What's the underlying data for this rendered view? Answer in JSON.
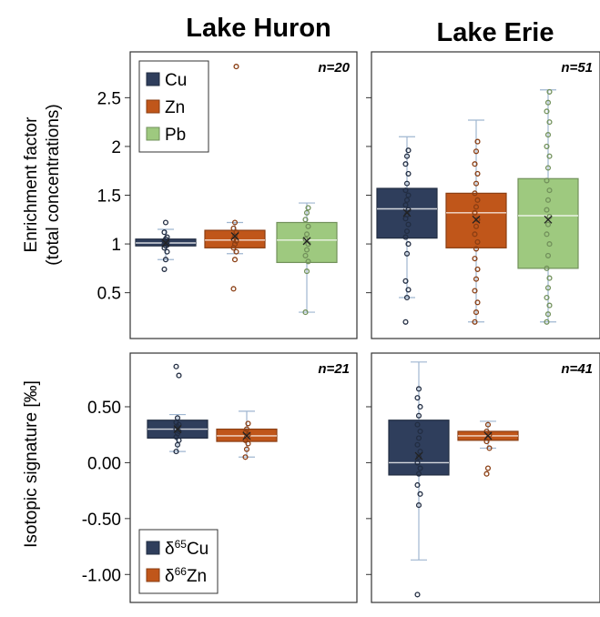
{
  "titles": {
    "left": "Lake Huron",
    "right": "Lake Erie"
  },
  "colors": {
    "Cu": "#2f3e5c",
    "Zn": "#c0561a",
    "Pb": "#9ec97f"
  },
  "chart_data": [
    {
      "type": "box",
      "panel": "top",
      "ylabel_line1": "Enrichment factor",
      "ylabel_line2": "(total concentrations)",
      "yticks": [
        "0.5",
        "1",
        "1.5",
        "2",
        "2.5"
      ],
      "ylim": [
        0.03,
        2.97
      ],
      "legend": {
        "placement": "top-left",
        "entries": [
          "Cu",
          "Zn",
          "Pb"
        ]
      },
      "groups": [
        {
          "lake": "Lake Huron",
          "n_label": "n=20",
          "series": [
            {
              "name": "Cu",
              "min": 0.84,
              "q1": 0.98,
              "median": 1.01,
              "q3": 1.05,
              "max": 1.15,
              "mean": 1.01,
              "points": [
                0.74,
                0.84,
                0.92,
                0.96,
                0.98,
                0.99,
                1.0,
                1.01,
                1.02,
                1.03,
                1.05,
                1.07,
                1.12,
                1.22
              ]
            },
            {
              "name": "Zn",
              "min": 0.9,
              "q1": 0.96,
              "median": 1.04,
              "q3": 1.14,
              "max": 1.22,
              "mean": 1.08,
              "points": [
                0.54,
                0.84,
                0.92,
                0.96,
                1.0,
                1.03,
                1.05,
                1.08,
                1.12,
                1.16,
                1.22,
                2.82
              ]
            },
            {
              "name": "Pb",
              "min": 0.3,
              "q1": 0.81,
              "median": 1.04,
              "q3": 1.22,
              "max": 1.42,
              "mean": 1.03,
              "points": [
                0.3,
                0.72,
                0.82,
                0.88,
                0.94,
                1.0,
                1.05,
                1.1,
                1.18,
                1.25,
                1.32,
                1.37
              ]
            }
          ]
        },
        {
          "lake": "Lake Erie",
          "n_label": "n=51",
          "series": [
            {
              "name": "Cu",
              "min": 0.45,
              "q1": 1.06,
              "median": 1.36,
              "q3": 1.57,
              "max": 2.1,
              "mean": 1.32,
              "points": [
                0.2,
                0.45,
                0.53,
                0.62,
                0.9,
                1.0,
                1.07,
                1.13,
                1.2,
                1.26,
                1.3,
                1.35,
                1.4,
                1.45,
                1.5,
                1.55,
                1.62,
                1.72,
                1.82,
                1.9,
                1.96
              ]
            },
            {
              "name": "Zn",
              "min": 0.2,
              "q1": 0.96,
              "median": 1.32,
              "q3": 1.52,
              "max": 2.27,
              "mean": 1.25,
              "points": [
                0.2,
                0.3,
                0.4,
                0.52,
                0.64,
                0.74,
                0.85,
                0.95,
                1.02,
                1.1,
                1.18,
                1.25,
                1.32,
                1.38,
                1.45,
                1.52,
                1.62,
                1.72,
                1.82,
                1.95,
                2.05
              ]
            },
            {
              "name": "Pb",
              "min": 0.2,
              "q1": 0.75,
              "median": 1.29,
              "q3": 1.67,
              "max": 2.58,
              "mean": 1.25,
              "points": [
                0.2,
                0.28,
                0.37,
                0.45,
                0.55,
                0.65,
                0.75,
                0.88,
                1.0,
                1.1,
                1.2,
                1.28,
                1.35,
                1.45,
                1.55,
                1.65,
                1.78,
                1.9,
                2.0,
                2.12,
                2.25,
                2.36,
                2.45,
                2.56
              ]
            }
          ]
        }
      ]
    },
    {
      "type": "box",
      "panel": "bottom",
      "ylabel": "Isotopic signature [‰]",
      "yticks": [
        "-1.00",
        "-0.50",
        "0.00",
        "0.50"
      ],
      "ylim": [
        -1.25,
        0.98
      ],
      "legend": {
        "placement": "bottom-left",
        "entries": [
          {
            "prefix": "δ",
            "sup": "65",
            "suffix": "Cu"
          },
          {
            "prefix": "δ",
            "sup": "66",
            "suffix": "Zn"
          }
        ]
      },
      "groups": [
        {
          "lake": "Lake Huron",
          "n_label": "n=21",
          "series": [
            {
              "name": "δ65Cu",
              "min": 0.1,
              "q1": 0.22,
              "median": 0.3,
              "q3": 0.38,
              "max": 0.43,
              "mean": 0.3,
              "points": [
                0.1,
                0.16,
                0.2,
                0.23,
                0.26,
                0.28,
                0.3,
                0.32,
                0.34,
                0.36,
                0.4,
                0.78,
                0.86
              ]
            },
            {
              "name": "δ66Zn",
              "min": 0.05,
              "q1": 0.19,
              "median": 0.24,
              "q3": 0.3,
              "max": 0.46,
              "mean": 0.24,
              "points": [
                0.05,
                0.12,
                0.17,
                0.2,
                0.23,
                0.25,
                0.27,
                0.3,
                0.35
              ]
            }
          ]
        },
        {
          "lake": "Lake Erie",
          "n_label": "n=41",
          "series": [
            {
              "name": "δ65Cu",
              "min": -0.87,
              "q1": -0.11,
              "median": 0.0,
              "q3": 0.38,
              "max": 0.9,
              "mean": 0.06,
              "points": [
                -1.18,
                -0.38,
                -0.28,
                -0.2,
                -0.1,
                -0.05,
                0.0,
                0.05,
                0.1,
                0.16,
                0.22,
                0.28,
                0.34,
                0.42,
                0.5,
                0.58,
                0.66
              ]
            },
            {
              "name": "δ66Zn",
              "min": 0.13,
              "q1": 0.2,
              "median": 0.24,
              "q3": 0.28,
              "max": 0.37,
              "mean": 0.24,
              "points": [
                -0.1,
                -0.05,
                0.13,
                0.19,
                0.22,
                0.25,
                0.28,
                0.34
              ]
            }
          ]
        }
      ]
    }
  ]
}
